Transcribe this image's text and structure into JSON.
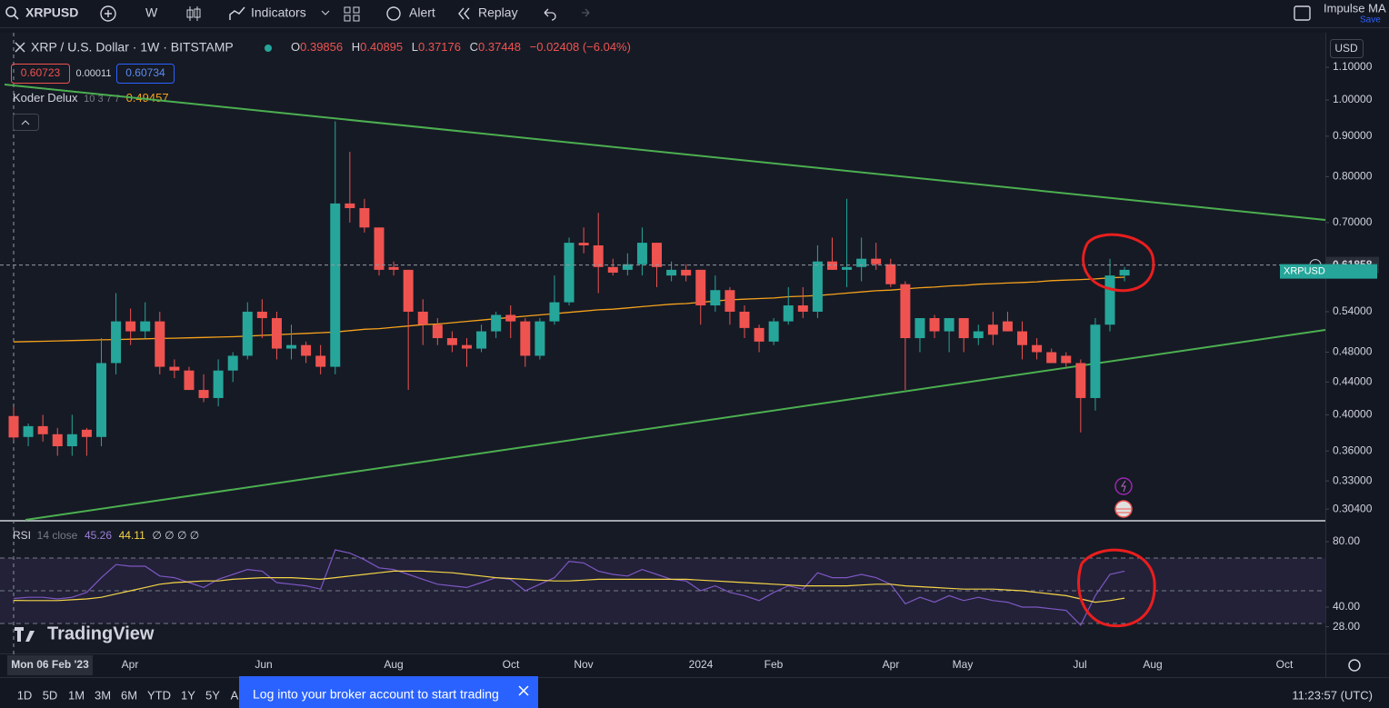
{
  "toolbar": {
    "symbol": "XRPUSD",
    "interval": "W",
    "indicators": "Indicators",
    "alert": "Alert",
    "replay": "Replay",
    "layout_name": "Impulse MA",
    "save": "Save"
  },
  "legend": {
    "title": "XRP / U.S. Dollar · 1W · BITSTAMP",
    "o": "O",
    "h": "H",
    "l": "L",
    "c": "C",
    "change": "−0.02408 (−6.04%)",
    "bid": "0.60723",
    "spread": "0.00011",
    "ask": "0.60734"
  },
  "chart_data": [
    {
      "type": "candlestick",
      "log_scale": true,
      "grid": false,
      "currency": "USD",
      "price_label": "XRPUSD",
      "last_price": 0.61858,
      "colors": {
        "up": "#26a69a",
        "down": "#ef5350"
      },
      "ylim": [
        0.2946,
        1.21
      ],
      "yticks": [
        {
          "value": 1.1,
          "label": "1.10000"
        },
        {
          "value": 1.0,
          "label": "1.00000"
        },
        {
          "value": 0.9,
          "label": "0.90000"
        },
        {
          "value": 0.8,
          "label": "0.80000"
        },
        {
          "value": 0.7,
          "label": "0.70000"
        },
        {
          "value": 0.54,
          "label": "0.54000"
        },
        {
          "value": 0.48,
          "label": "0.48000"
        },
        {
          "value": 0.44,
          "label": "0.44000"
        },
        {
          "value": 0.4,
          "label": "0.40000"
        },
        {
          "value": 0.36,
          "label": "0.36000"
        },
        {
          "value": 0.33,
          "label": "0.33000"
        },
        {
          "value": 0.304,
          "label": "0.30400"
        }
      ],
      "x_labels": [
        "Mon 06 Feb '23",
        "Apr",
        "Jun",
        "Aug",
        "Oct",
        "Nov",
        "2024",
        "Feb",
        "Apr",
        "May",
        "Jul",
        "Aug",
        "Oct"
      ],
      "open": [
        0.39856,
        0.375,
        0.387,
        0.378,
        0.365,
        0.383,
        0.375,
        0.465,
        0.525,
        0.51,
        0.525,
        0.46,
        0.455,
        0.43,
        0.42,
        0.455,
        0.475,
        0.54,
        0.53,
        0.485,
        0.49,
        0.475,
        0.46,
        0.74,
        0.73,
        0.69,
        0.615,
        0.61,
        0.54,
        0.52,
        0.5,
        0.49,
        0.485,
        0.51,
        0.535,
        0.525,
        0.475,
        0.525,
        0.555,
        0.66,
        0.655,
        0.615,
        0.61,
        0.62,
        0.66,
        0.6,
        0.61,
        0.61,
        0.55,
        0.575,
        0.54,
        0.515,
        0.495,
        0.525,
        0.55,
        0.54,
        0.625,
        0.61,
        0.615,
        0.63,
        0.62,
        0.585,
        0.5,
        0.53,
        0.51,
        0.53,
        0.5,
        0.52,
        0.525,
        0.51,
        0.49,
        0.48,
        0.475,
        0.465,
        0.42,
        0.52,
        0.6
      ],
      "high": [
        0.40895,
        0.39,
        0.4,
        0.385,
        0.4,
        0.385,
        0.5,
        0.57,
        0.545,
        0.555,
        0.54,
        0.47,
        0.46,
        0.45,
        0.47,
        0.48,
        0.555,
        0.56,
        0.54,
        0.52,
        0.495,
        0.49,
        0.94,
        0.86,
        0.75,
        0.69,
        0.625,
        0.61,
        0.56,
        0.53,
        0.51,
        0.5,
        0.52,
        0.54,
        0.55,
        0.53,
        0.53,
        0.6,
        0.67,
        0.69,
        0.72,
        0.63,
        0.64,
        0.69,
        0.66,
        0.625,
        0.62,
        0.61,
        0.6,
        0.58,
        0.55,
        0.52,
        0.53,
        0.58,
        0.58,
        0.655,
        0.67,
        0.75,
        0.67,
        0.66,
        0.63,
        0.59,
        0.53,
        0.535,
        0.53,
        0.53,
        0.52,
        0.54,
        0.54,
        0.525,
        0.5,
        0.485,
        0.48,
        0.47,
        0.53,
        0.63,
        0.615
      ],
      "low": [
        0.37176,
        0.365,
        0.37,
        0.355,
        0.355,
        0.355,
        0.365,
        0.45,
        0.49,
        0.5,
        0.45,
        0.445,
        0.43,
        0.415,
        0.41,
        0.44,
        0.47,
        0.5,
        0.47,
        0.47,
        0.465,
        0.45,
        0.45,
        0.7,
        0.68,
        0.6,
        0.6,
        0.43,
        0.49,
        0.49,
        0.48,
        0.46,
        0.48,
        0.5,
        0.5,
        0.46,
        0.47,
        0.52,
        0.55,
        0.64,
        0.57,
        0.6,
        0.6,
        0.6,
        0.58,
        0.59,
        0.59,
        0.52,
        0.54,
        0.52,
        0.5,
        0.48,
        0.49,
        0.52,
        0.53,
        0.53,
        0.61,
        0.58,
        0.59,
        0.61,
        0.58,
        0.43,
        0.48,
        0.5,
        0.48,
        0.48,
        0.49,
        0.49,
        0.51,
        0.47,
        0.47,
        0.465,
        0.46,
        0.38,
        0.405,
        0.51,
        0.59
      ],
      "close": [
        0.37448,
        0.387,
        0.378,
        0.365,
        0.378,
        0.375,
        0.465,
        0.525,
        0.51,
        0.525,
        0.46,
        0.455,
        0.43,
        0.42,
        0.455,
        0.475,
        0.54,
        0.53,
        0.485,
        0.49,
        0.475,
        0.46,
        0.74,
        0.73,
        0.69,
        0.61,
        0.61,
        0.54,
        0.52,
        0.5,
        0.49,
        0.485,
        0.51,
        0.535,
        0.525,
        0.475,
        0.525,
        0.555,
        0.66,
        0.655,
        0.615,
        0.605,
        0.62,
        0.66,
        0.615,
        0.61,
        0.6,
        0.55,
        0.575,
        0.54,
        0.515,
        0.495,
        0.525,
        0.55,
        0.54,
        0.625,
        0.61,
        0.615,
        0.63,
        0.62,
        0.585,
        0.5,
        0.53,
        0.51,
        0.53,
        0.5,
        0.51,
        0.505,
        0.51,
        0.49,
        0.48,
        0.465,
        0.465,
        0.42,
        0.52,
        0.6,
        0.61
      ],
      "overlay": {
        "name": "Koder Delux",
        "params": "10 3 7 7",
        "color": "#f7a21b",
        "values": [
          0.49457,
          0.495,
          0.4955,
          0.496,
          0.4965,
          0.497,
          0.4975,
          0.498,
          0.4985,
          0.499,
          0.4995,
          0.5,
          0.5005,
          0.501,
          0.5015,
          0.502,
          0.503,
          0.504,
          0.505,
          0.506,
          0.507,
          0.508,
          0.509,
          0.511,
          0.513,
          0.514,
          0.516,
          0.518,
          0.52,
          0.521,
          0.523,
          0.525,
          0.527,
          0.529,
          0.531,
          0.533,
          0.535,
          0.537,
          0.539,
          0.541,
          0.543,
          0.544,
          0.546,
          0.548,
          0.55,
          0.552,
          0.553,
          0.555,
          0.557,
          0.559,
          0.56,
          0.561,
          0.562,
          0.564,
          0.565,
          0.566,
          0.568,
          0.57,
          0.572,
          0.574,
          0.575,
          0.577,
          0.579,
          0.58,
          0.582,
          0.583,
          0.585,
          0.586,
          0.587,
          0.588,
          0.589,
          0.591,
          0.592,
          0.593,
          0.594,
          0.596,
          0.597
        ]
      }
    },
    {
      "type": "line",
      "grid": false,
      "ylim": [
        13.9,
        90
      ],
      "yticks": [
        {
          "value": 80,
          "label": "80.00"
        },
        {
          "value": 40,
          "label": "40.00"
        },
        {
          "value": 28,
          "label": "28.00"
        }
      ],
      "levels": [
        70,
        50,
        30
      ],
      "band_color": "#7e57c2",
      "extra": "∅ ∅ ∅ ∅",
      "series": [
        {
          "name": "RSI",
          "params": "14 close",
          "color": "#7e57c2",
          "values": [
            45.26,
            46,
            46,
            45,
            46,
            49,
            58,
            66,
            65,
            65,
            59,
            58,
            55,
            52,
            57,
            60,
            63,
            62,
            55,
            54,
            53,
            51,
            75,
            73,
            69,
            64,
            63,
            60,
            57,
            54,
            53,
            52,
            55,
            58,
            57,
            50,
            54,
            58,
            68,
            67,
            62,
            60,
            59,
            63,
            60,
            57,
            56,
            50,
            53,
            49,
            47,
            44,
            49,
            53,
            51,
            61,
            58,
            58,
            60,
            58,
            54,
            42,
            46,
            43,
            47,
            44,
            46,
            44,
            43,
            40,
            40,
            39,
            38,
            29,
            47,
            60,
            62
          ]
        },
        {
          "color": "#f5d547",
          "values": [
            44.11,
            44,
            44,
            44,
            44.5,
            45,
            46,
            48,
            50,
            52,
            54,
            55,
            55.5,
            56,
            56,
            57,
            57.5,
            58,
            58,
            58,
            57.5,
            57,
            58,
            59,
            60,
            61,
            62,
            62,
            62,
            61.5,
            61,
            60,
            59,
            58,
            57.5,
            57,
            56.5,
            56,
            56,
            56.5,
            57,
            57,
            57,
            57,
            57,
            57,
            57,
            56.5,
            56,
            55.5,
            55,
            54.5,
            54,
            53.5,
            53,
            53,
            53,
            53,
            53.5,
            54,
            54,
            53,
            52.5,
            52,
            51.5,
            51,
            51,
            51,
            50.5,
            50,
            49,
            48,
            47,
            45,
            43,
            44,
            45.5
          ]
        }
      ]
    }
  ],
  "bottom": {
    "ranges": [
      "1D",
      "5D",
      "1M",
      "3M",
      "6M",
      "YTD",
      "1Y",
      "5Y",
      "A"
    ],
    "broker_banner": "Log into your broker account to start trading",
    "clock": "11:23:57 (UTC)",
    "brand": "TradingView"
  }
}
